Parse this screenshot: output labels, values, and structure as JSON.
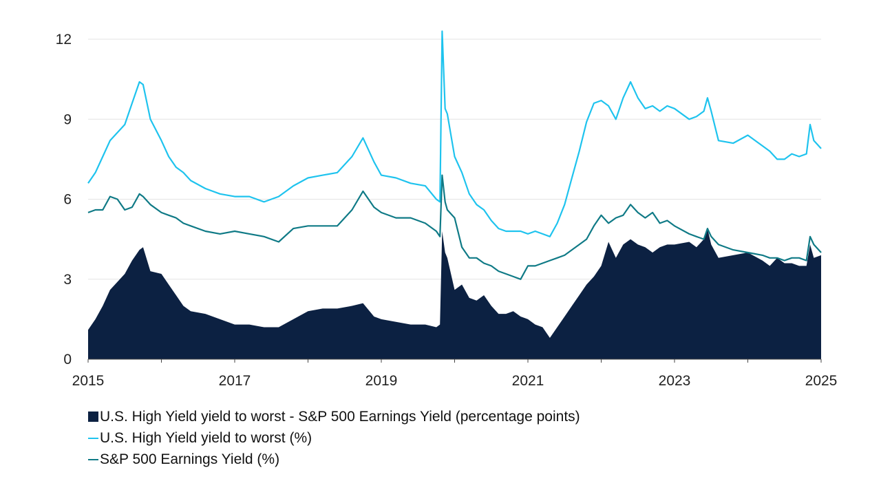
{
  "chart_data": {
    "type": "area",
    "xlim": [
      2015,
      2025
    ],
    "ylim": [
      0,
      12
    ],
    "x_ticks": [
      "2015",
      "2017",
      "2019",
      "2021",
      "2023",
      "2025"
    ],
    "x_tick_values": [
      2015,
      2017,
      2019,
      2021,
      2023,
      2025
    ],
    "y_ticks": [
      "0",
      "3",
      "6",
      "9",
      "12"
    ],
    "y_tick_values": [
      0,
      3,
      6,
      9,
      12
    ],
    "grid": "horizontal",
    "legend_position": "bottom-left",
    "series": [
      {
        "name": "U.S. High Yield yield to worst - S&P 500 Earnings Yield (percentage points)",
        "kind": "area",
        "color": "#0c2142",
        "legend_marker": "■",
        "x": [
          2015.0,
          2015.1,
          2015.2,
          2015.3,
          2015.4,
          2015.5,
          2015.6,
          2015.7,
          2015.75,
          2015.85,
          2016.0,
          2016.1,
          2016.2,
          2016.3,
          2016.4,
          2016.6,
          2016.8,
          2017.0,
          2017.2,
          2017.4,
          2017.6,
          2017.8,
          2018.0,
          2018.2,
          2018.4,
          2018.6,
          2018.75,
          2018.9,
          2019.0,
          2019.2,
          2019.4,
          2019.6,
          2019.75,
          2019.8,
          2019.83,
          2019.87,
          2019.9,
          2020.0,
          2020.1,
          2020.2,
          2020.3,
          2020.4,
          2020.5,
          2020.6,
          2020.7,
          2020.8,
          2020.9,
          2021.0,
          2021.1,
          2021.2,
          2021.3,
          2021.4,
          2021.5,
          2021.6,
          2021.7,
          2021.8,
          2021.9,
          2022.0,
          2022.1,
          2022.2,
          2022.3,
          2022.4,
          2022.5,
          2022.6,
          2022.7,
          2022.8,
          2022.9,
          2023.0,
          2023.2,
          2023.3,
          2023.4,
          2023.45,
          2023.5,
          2023.6,
          2023.8,
          2024.0,
          2024.2,
          2024.3,
          2024.4,
          2024.5,
          2024.6,
          2024.7,
          2024.8,
          2024.85,
          2024.9,
          2025.0
        ],
        "values": [
          1.1,
          1.5,
          2.0,
          2.6,
          2.9,
          3.2,
          3.7,
          4.1,
          4.2,
          3.3,
          3.2,
          2.8,
          2.4,
          2.0,
          1.8,
          1.7,
          1.5,
          1.3,
          1.3,
          1.2,
          1.2,
          1.5,
          1.8,
          1.9,
          1.9,
          2.0,
          2.1,
          1.6,
          1.5,
          1.4,
          1.3,
          1.3,
          1.2,
          1.3,
          4.8,
          4.0,
          3.8,
          2.6,
          2.8,
          2.3,
          2.2,
          2.4,
          2.0,
          1.7,
          1.7,
          1.8,
          1.6,
          1.5,
          1.3,
          1.2,
          0.8,
          1.2,
          1.6,
          2.0,
          2.4,
          2.8,
          3.1,
          3.5,
          4.4,
          3.8,
          4.3,
          4.5,
          4.3,
          4.2,
          4.0,
          4.2,
          4.3,
          4.3,
          4.4,
          4.2,
          4.5,
          4.9,
          4.3,
          3.8,
          3.9,
          4.0,
          3.7,
          3.5,
          3.8,
          3.6,
          3.6,
          3.5,
          3.5,
          4.3,
          3.8,
          3.9
        ]
      },
      {
        "name": "U.S. High Yield yield to worst (%)",
        "kind": "line",
        "color": "#1ec3ee",
        "legend_marker": "—",
        "x": [
          2015.0,
          2015.1,
          2015.2,
          2015.3,
          2015.4,
          2015.5,
          2015.6,
          2015.7,
          2015.75,
          2015.85,
          2016.0,
          2016.1,
          2016.2,
          2016.3,
          2016.4,
          2016.6,
          2016.8,
          2017.0,
          2017.2,
          2017.4,
          2017.6,
          2017.8,
          2018.0,
          2018.2,
          2018.4,
          2018.6,
          2018.75,
          2018.9,
          2019.0,
          2019.2,
          2019.4,
          2019.6,
          2019.75,
          2019.8,
          2019.83,
          2019.87,
          2019.9,
          2020.0,
          2020.1,
          2020.2,
          2020.3,
          2020.4,
          2020.5,
          2020.6,
          2020.7,
          2020.8,
          2020.9,
          2021.0,
          2021.1,
          2021.2,
          2021.3,
          2021.4,
          2021.5,
          2021.6,
          2021.7,
          2021.8,
          2021.9,
          2022.0,
          2022.1,
          2022.2,
          2022.3,
          2022.4,
          2022.5,
          2022.6,
          2022.7,
          2022.8,
          2022.9,
          2023.0,
          2023.2,
          2023.3,
          2023.4,
          2023.45,
          2023.5,
          2023.6,
          2023.8,
          2024.0,
          2024.2,
          2024.3,
          2024.4,
          2024.5,
          2024.6,
          2024.7,
          2024.8,
          2024.85,
          2024.9,
          2025.0
        ],
        "values": [
          6.6,
          7.0,
          7.6,
          8.2,
          8.5,
          8.8,
          9.6,
          10.4,
          10.3,
          9.0,
          8.2,
          7.6,
          7.2,
          7.0,
          6.7,
          6.4,
          6.2,
          6.1,
          6.1,
          5.9,
          6.1,
          6.5,
          6.8,
          6.9,
          7.0,
          7.6,
          8.3,
          7.4,
          6.9,
          6.8,
          6.6,
          6.5,
          6.0,
          5.9,
          12.3,
          9.4,
          9.2,
          7.6,
          7.0,
          6.2,
          5.8,
          5.6,
          5.2,
          4.9,
          4.8,
          4.8,
          4.8,
          4.7,
          4.8,
          4.7,
          4.6,
          5.1,
          5.8,
          6.8,
          7.8,
          8.9,
          9.6,
          9.7,
          9.5,
          9.0,
          9.8,
          10.4,
          9.8,
          9.4,
          9.5,
          9.3,
          9.5,
          9.4,
          9.0,
          9.1,
          9.3,
          9.8,
          9.3,
          8.2,
          8.1,
          8.4,
          8.0,
          7.8,
          7.5,
          7.5,
          7.7,
          7.6,
          7.7,
          8.8,
          8.2,
          7.9
        ]
      },
      {
        "name": "S&P 500 Earnings Yield (%)",
        "kind": "line",
        "color": "#0f7a86",
        "legend_marker": "—",
        "x": [
          2015.0,
          2015.1,
          2015.2,
          2015.3,
          2015.4,
          2015.5,
          2015.6,
          2015.7,
          2015.75,
          2015.85,
          2016.0,
          2016.1,
          2016.2,
          2016.3,
          2016.4,
          2016.6,
          2016.8,
          2017.0,
          2017.2,
          2017.4,
          2017.6,
          2017.8,
          2018.0,
          2018.2,
          2018.4,
          2018.6,
          2018.75,
          2018.9,
          2019.0,
          2019.2,
          2019.4,
          2019.6,
          2019.75,
          2019.8,
          2019.83,
          2019.87,
          2019.9,
          2020.0,
          2020.1,
          2020.2,
          2020.3,
          2020.4,
          2020.5,
          2020.6,
          2020.7,
          2020.8,
          2020.9,
          2021.0,
          2021.1,
          2021.2,
          2021.3,
          2021.4,
          2021.5,
          2021.6,
          2021.7,
          2021.8,
          2021.9,
          2022.0,
          2022.1,
          2022.2,
          2022.3,
          2022.4,
          2022.5,
          2022.6,
          2022.7,
          2022.8,
          2022.9,
          2023.0,
          2023.2,
          2023.3,
          2023.4,
          2023.45,
          2023.5,
          2023.6,
          2023.8,
          2024.0,
          2024.2,
          2024.3,
          2024.4,
          2024.5,
          2024.6,
          2024.7,
          2024.8,
          2024.85,
          2024.9,
          2025.0
        ],
        "values": [
          5.5,
          5.6,
          5.6,
          6.1,
          6.0,
          5.6,
          5.7,
          6.2,
          6.1,
          5.8,
          5.5,
          5.4,
          5.3,
          5.1,
          5.0,
          4.8,
          4.7,
          4.8,
          4.7,
          4.6,
          4.4,
          4.9,
          5.0,
          5.0,
          5.0,
          5.6,
          6.3,
          5.7,
          5.5,
          5.3,
          5.3,
          5.1,
          4.8,
          4.6,
          6.9,
          5.9,
          5.6,
          5.3,
          4.2,
          3.8,
          3.8,
          3.6,
          3.5,
          3.3,
          3.2,
          3.1,
          3.0,
          3.5,
          3.5,
          3.6,
          3.7,
          3.8,
          3.9,
          4.1,
          4.3,
          4.5,
          5.0,
          5.4,
          5.1,
          5.3,
          5.4,
          5.8,
          5.5,
          5.3,
          5.5,
          5.1,
          5.2,
          5.0,
          4.7,
          4.6,
          4.5,
          4.9,
          4.6,
          4.3,
          4.1,
          4.0,
          3.9,
          3.8,
          3.8,
          3.7,
          3.8,
          3.8,
          3.7,
          4.6,
          4.3,
          4.0
        ]
      }
    ]
  }
}
